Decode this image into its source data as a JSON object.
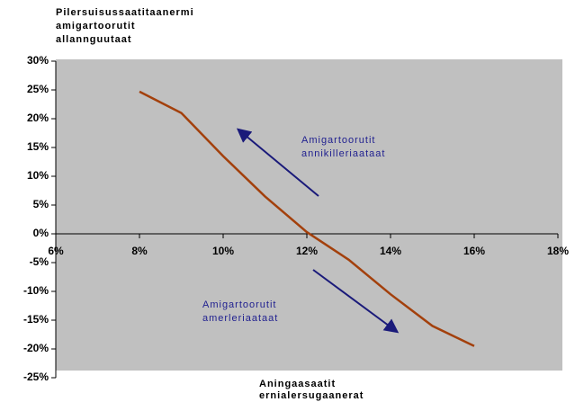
{
  "chart_data": {
    "type": "line",
    "y_label": [
      "Pilersuisussaatitaanermi",
      "amigartoorutit",
      "allannguutaat"
    ],
    "x_label": [
      "Aningaasaatit",
      "ernialersugaanerat"
    ],
    "annotations": [
      [
        "Amigartoorutit",
        "annikilleriaataat"
      ],
      [
        "Amigartoorutit",
        "amerleriaataat"
      ]
    ],
    "x": [
      8,
      9,
      10,
      11,
      12,
      13,
      14,
      15,
      16
    ],
    "series": [
      {
        "name": "Line",
        "color": "#a3400c",
        "values": [
          24.7,
          21,
          13.5,
          6.5,
          0.3,
          -4.5,
          -10.5,
          -16,
          -19.5
        ]
      }
    ],
    "xlim": [
      6,
      18
    ],
    "xticks": [
      {
        "value": 6,
        "label": "6%"
      },
      {
        "value": 8,
        "label": "8%"
      },
      {
        "value": 10,
        "label": "10%"
      },
      {
        "value": 12,
        "label": "12%"
      },
      {
        "value": 14,
        "label": "14%"
      },
      {
        "value": 16,
        "label": "16%"
      },
      {
        "value": 18,
        "label": "18%"
      }
    ],
    "ylim": [
      -25,
      30
    ],
    "yticks": [
      {
        "value": 30,
        "label": "30%"
      },
      {
        "value": 25,
        "label": "25%"
      },
      {
        "value": 20,
        "label": "20%"
      },
      {
        "value": 15,
        "label": "15%"
      },
      {
        "value": 10,
        "label": "10%"
      },
      {
        "value": 5,
        "label": "5%"
      },
      {
        "value": 0,
        "label": "0%"
      },
      {
        "value": -5,
        "label": "-5%"
      },
      {
        "value": -10,
        "label": "-10%"
      },
      {
        "value": -15,
        "label": "-15%"
      },
      {
        "value": -20,
        "label": "-20%"
      },
      {
        "value": -25,
        "label": "-25%"
      }
    ],
    "background": "#c0c0c0"
  }
}
